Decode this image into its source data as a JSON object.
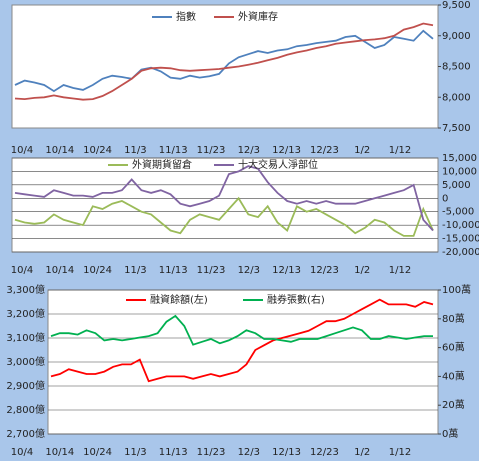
{
  "chart_data": [
    {
      "type": "line",
      "legend": "top",
      "categories": [
        "10/4",
        null,
        null,
        null,
        "10/14",
        null,
        null,
        null,
        "10/24",
        null,
        null,
        null,
        "11/3",
        null,
        null,
        null,
        "11/13",
        null,
        null,
        null,
        "11/23",
        null,
        null,
        null,
        "12/3",
        null,
        null,
        null,
        "12/13",
        null,
        null,
        null,
        "12/23",
        null,
        null,
        null,
        "1/2",
        null,
        null,
        null,
        "1/12",
        null,
        null,
        null
      ],
      "series": [
        {
          "name": "指數",
          "color": "#4f81bd",
          "values": [
            8200,
            8270,
            8240,
            8200,
            8100,
            8200,
            8150,
            8120,
            8200,
            8300,
            8350,
            8330,
            8300,
            8450,
            8480,
            8420,
            8320,
            8300,
            8350,
            8320,
            8340,
            8380,
            8550,
            8650,
            8700,
            8750,
            8720,
            8760,
            8780,
            8830,
            8850,
            8880,
            8900,
            8920,
            8980,
            9000,
            8900,
            8800,
            8850,
            8980,
            8950,
            8920,
            9080,
            8950
          ]
        },
        {
          "name": "外資庫存",
          "color": "#c0504d",
          "values": [
            7980,
            7970,
            7990,
            8000,
            8030,
            8000,
            7980,
            7960,
            7970,
            8020,
            8100,
            8200,
            8300,
            8430,
            8470,
            8480,
            8470,
            8440,
            8430,
            8440,
            8450,
            8460,
            8480,
            8500,
            8530,
            8560,
            8600,
            8640,
            8690,
            8730,
            8760,
            8800,
            8830,
            8870,
            8890,
            8910,
            8930,
            8940,
            8960,
            9000,
            9100,
            9140,
            9200,
            9170
          ]
        }
      ],
      "ylim": [
        7500,
        9500
      ],
      "yticks": [
        {
          "value": 7500,
          "label": "7,500"
        },
        {
          "value": 8000,
          "label": "8,000"
        },
        {
          "value": 8500,
          "label": "8,500"
        },
        {
          "value": 9000,
          "label": "9,000"
        },
        {
          "value": 9500,
          "label": "9,500"
        }
      ],
      "grid": false
    },
    {
      "type": "line",
      "legend": "top",
      "grid": true,
      "negative_color": "#ff0000",
      "categories": [
        "10/4",
        null,
        null,
        null,
        "10/14",
        null,
        null,
        null,
        "10/24",
        null,
        null,
        null,
        "11/3",
        null,
        null,
        null,
        "11/13",
        null,
        null,
        null,
        "11/23",
        null,
        null,
        null,
        "12/3",
        null,
        null,
        null,
        "12/13",
        null,
        null,
        null,
        "12/23",
        null,
        null,
        null,
        "1/2",
        null,
        null,
        null,
        "1/12",
        null,
        null,
        null
      ],
      "series": [
        {
          "name": "外資期貨留倉",
          "color": "#9bbb59",
          "values": [
            -8000,
            -9000,
            -9500,
            -9000,
            -6000,
            -8000,
            -9000,
            -10000,
            -3000,
            -4000,
            -2000,
            -1000,
            -3000,
            -5000,
            -6000,
            -9000,
            -12000,
            -13000,
            -8000,
            -6000,
            -7000,
            -8000,
            -4000,
            0,
            -6000,
            -7000,
            -3000,
            -9000,
            -12000,
            -3000,
            -5000,
            -4000,
            -6000,
            -8000,
            -10000,
            -13000,
            -11000,
            -8000,
            -9000,
            -12000,
            -14000,
            -14000,
            -4000,
            -12000
          ]
        },
        {
          "name": "十大交易人淨部位",
          "color": "#8064a2",
          "values": [
            2000,
            1500,
            1000,
            500,
            3000,
            2000,
            1000,
            1000,
            500,
            2000,
            2000,
            3000,
            7000,
            3000,
            2000,
            3000,
            1500,
            -2000,
            -3000,
            -2000,
            -1000,
            1000,
            9000,
            10000,
            12000,
            11000,
            6000,
            2000,
            -1000,
            -2000,
            -1000,
            -2000,
            -1000,
            -2000,
            -2000,
            -2000,
            -1000,
            0,
            1000,
            2000,
            3000,
            5000,
            -8000,
            -12000
          ]
        }
      ],
      "ylim": [
        -20000,
        15000
      ],
      "yticks": [
        {
          "value": -20000,
          "label": "-20,000"
        },
        {
          "value": -15000,
          "label": "-15,000"
        },
        {
          "value": -10000,
          "label": "-10,000"
        },
        {
          "value": -5000,
          "label": "-5,000"
        },
        0,
        {
          "value": 5000,
          "label": "5,000"
        },
        {
          "value": 10000,
          "label": "10,000"
        },
        {
          "value": 15000,
          "label": "15,000"
        }
      ]
    },
    {
      "type": "line",
      "legend": "top",
      "grid": true,
      "categories": [
        "10/4",
        null,
        null,
        null,
        "10/14",
        null,
        null,
        null,
        "10/24",
        null,
        null,
        null,
        "11/3",
        null,
        null,
        null,
        "11/13",
        null,
        null,
        null,
        "11/23",
        null,
        null,
        null,
        "12/3",
        null,
        null,
        null,
        "12/13",
        null,
        null,
        null,
        "12/23",
        null,
        null,
        null,
        "1/2",
        null,
        null,
        null,
        "1/12",
        null,
        null,
        null
      ],
      "series": [
        {
          "name": "融資餘額(左)",
          "color": "#ff0000",
          "values": [
            2940,
            2950,
            2970,
            2960,
            2950,
            2950,
            2960,
            2980,
            2990,
            2990,
            3010,
            2920,
            2930,
            2940,
            2940,
            2940,
            2930,
            2940,
            2950,
            2940,
            2950,
            2960,
            2990,
            3050,
            3070,
            3090,
            3100,
            3110,
            3120,
            3130,
            3150,
            3170,
            3170,
            3180,
            3200,
            3220,
            3240,
            3260,
            3240,
            3240,
            3240,
            3230,
            3250,
            3240
          ]
        },
        {
          "name": "融券張數(右)",
          "color": "#00b050",
          "axis": "y2",
          "values": [
            68,
            70,
            70,
            69,
            72,
            70,
            65,
            66,
            65,
            66,
            67,
            68,
            70,
            78,
            82,
            75,
            62,
            64,
            66,
            63,
            65,
            68,
            72,
            70,
            66,
            66,
            65,
            64,
            66,
            66,
            66,
            68,
            70,
            72,
            74,
            72,
            66,
            66,
            68,
            67,
            66,
            67,
            68,
            68
          ]
        }
      ],
      "ylim": [
        2700,
        3300
      ],
      "yticks": [
        {
          "value": 2700,
          "label": "2,700億"
        },
        {
          "value": 2800,
          "label": "2,800億"
        },
        {
          "value": 2900,
          "label": "2,900億"
        },
        {
          "value": 3000,
          "label": "3,000億"
        },
        {
          "value": 3100,
          "label": "3,100億"
        },
        {
          "value": 3200,
          "label": "3,200億"
        },
        {
          "value": 3300,
          "label": "3,300億"
        }
      ],
      "y2lim": [
        0,
        100
      ],
      "y2ticks": [
        {
          "value": 0,
          "label": "0萬"
        },
        {
          "value": 20,
          "label": "20萬"
        },
        {
          "value": 40,
          "label": "40萬"
        },
        {
          "value": 60,
          "label": "60萬"
        },
        {
          "value": 80,
          "label": "80萬"
        },
        {
          "value": 100,
          "label": "100萬"
        }
      ]
    }
  ]
}
